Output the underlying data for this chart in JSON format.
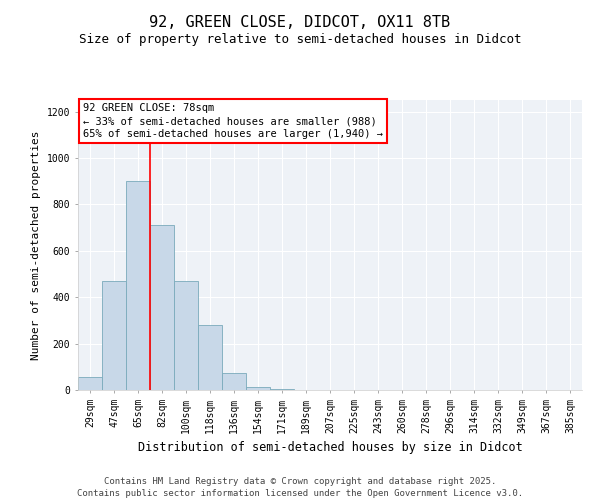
{
  "title": "92, GREEN CLOSE, DIDCOT, OX11 8TB",
  "subtitle": "Size of property relative to semi-detached houses in Didcot",
  "xlabel": "Distribution of semi-detached houses by size in Didcot",
  "ylabel": "Number of semi-detached properties",
  "categories": [
    "29sqm",
    "47sqm",
    "65sqm",
    "82sqm",
    "100sqm",
    "118sqm",
    "136sqm",
    "154sqm",
    "171sqm",
    "189sqm",
    "207sqm",
    "225sqm",
    "243sqm",
    "260sqm",
    "278sqm",
    "296sqm",
    "314sqm",
    "332sqm",
    "349sqm",
    "367sqm",
    "385sqm"
  ],
  "values": [
    55,
    470,
    900,
    710,
    470,
    280,
    75,
    15,
    5,
    0,
    0,
    0,
    0,
    0,
    0,
    0,
    0,
    0,
    0,
    0,
    0
  ],
  "bar_color": "#c8d8e8",
  "bar_edge_color": "#7aaabb",
  "vline_color": "red",
  "vline_x": 2.5,
  "annotation_title": "92 GREEN CLOSE: 78sqm",
  "annotation_line2": "← 33% of semi-detached houses are smaller (988)",
  "annotation_line3": "65% of semi-detached houses are larger (1,940) →",
  "annotation_box_color": "white",
  "annotation_box_edge_color": "red",
  "ylim": [
    0,
    1250
  ],
  "yticks": [
    0,
    200,
    400,
    600,
    800,
    1000,
    1200
  ],
  "background_color": "#eef2f7",
  "footer": "Contains HM Land Registry data © Crown copyright and database right 2025.\nContains public sector information licensed under the Open Government Licence v3.0.",
  "title_fontsize": 11,
  "subtitle_fontsize": 9,
  "xlabel_fontsize": 8.5,
  "ylabel_fontsize": 8,
  "tick_fontsize": 7,
  "footer_fontsize": 6.5,
  "annotation_fontsize": 7.5
}
